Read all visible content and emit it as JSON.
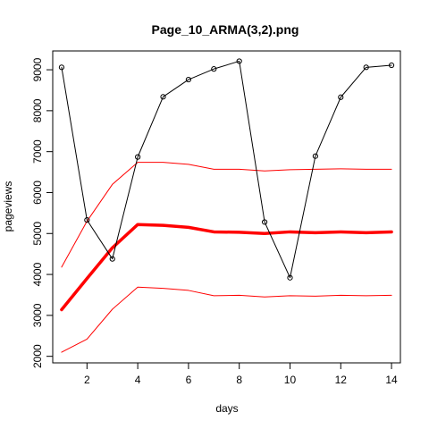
{
  "chart_data": {
    "type": "line",
    "title": "Page_10_ARMA(3,2).png",
    "xlabel": "days",
    "ylabel": "pageviews",
    "xlim": [
      0.65,
      14.35
    ],
    "ylim": [
      1840,
      9460
    ],
    "x_ticks": [
      2,
      4,
      6,
      8,
      10,
      12,
      14
    ],
    "y_ticks": [
      2000,
      3000,
      4000,
      5000,
      6000,
      7000,
      8000,
      9000
    ],
    "x": [
      1,
      2,
      3,
      4,
      5,
      6,
      7,
      8,
      9,
      10,
      11,
      12,
      13,
      14
    ],
    "series": [
      {
        "values": [
          9060,
          5330,
          4380,
          6870,
          8340,
          8760,
          9020,
          9210,
          5280,
          3920,
          6890,
          8330,
          9060,
          9110
        ],
        "color": "#000000",
        "markers": "open-circle",
        "width": "thin"
      },
      {
        "values": [
          4180,
          5300,
          6200,
          6740,
          6740,
          6690,
          6570,
          6570,
          6530,
          6560,
          6570,
          6580,
          6570,
          6570
        ],
        "color": "#ff0000",
        "width": "thin"
      },
      {
        "values": [
          3140,
          3900,
          4650,
          5220,
          5200,
          5150,
          5040,
          5030,
          5000,
          5040,
          5020,
          5040,
          5020,
          5040
        ],
        "color": "#ff0000",
        "width": "thick"
      },
      {
        "values": [
          2100,
          2420,
          3150,
          3690,
          3660,
          3610,
          3480,
          3490,
          3450,
          3480,
          3470,
          3490,
          3480,
          3490
        ],
        "color": "#ff0000",
        "width": "thin"
      }
    ],
    "grid": false,
    "legend": "none"
  }
}
